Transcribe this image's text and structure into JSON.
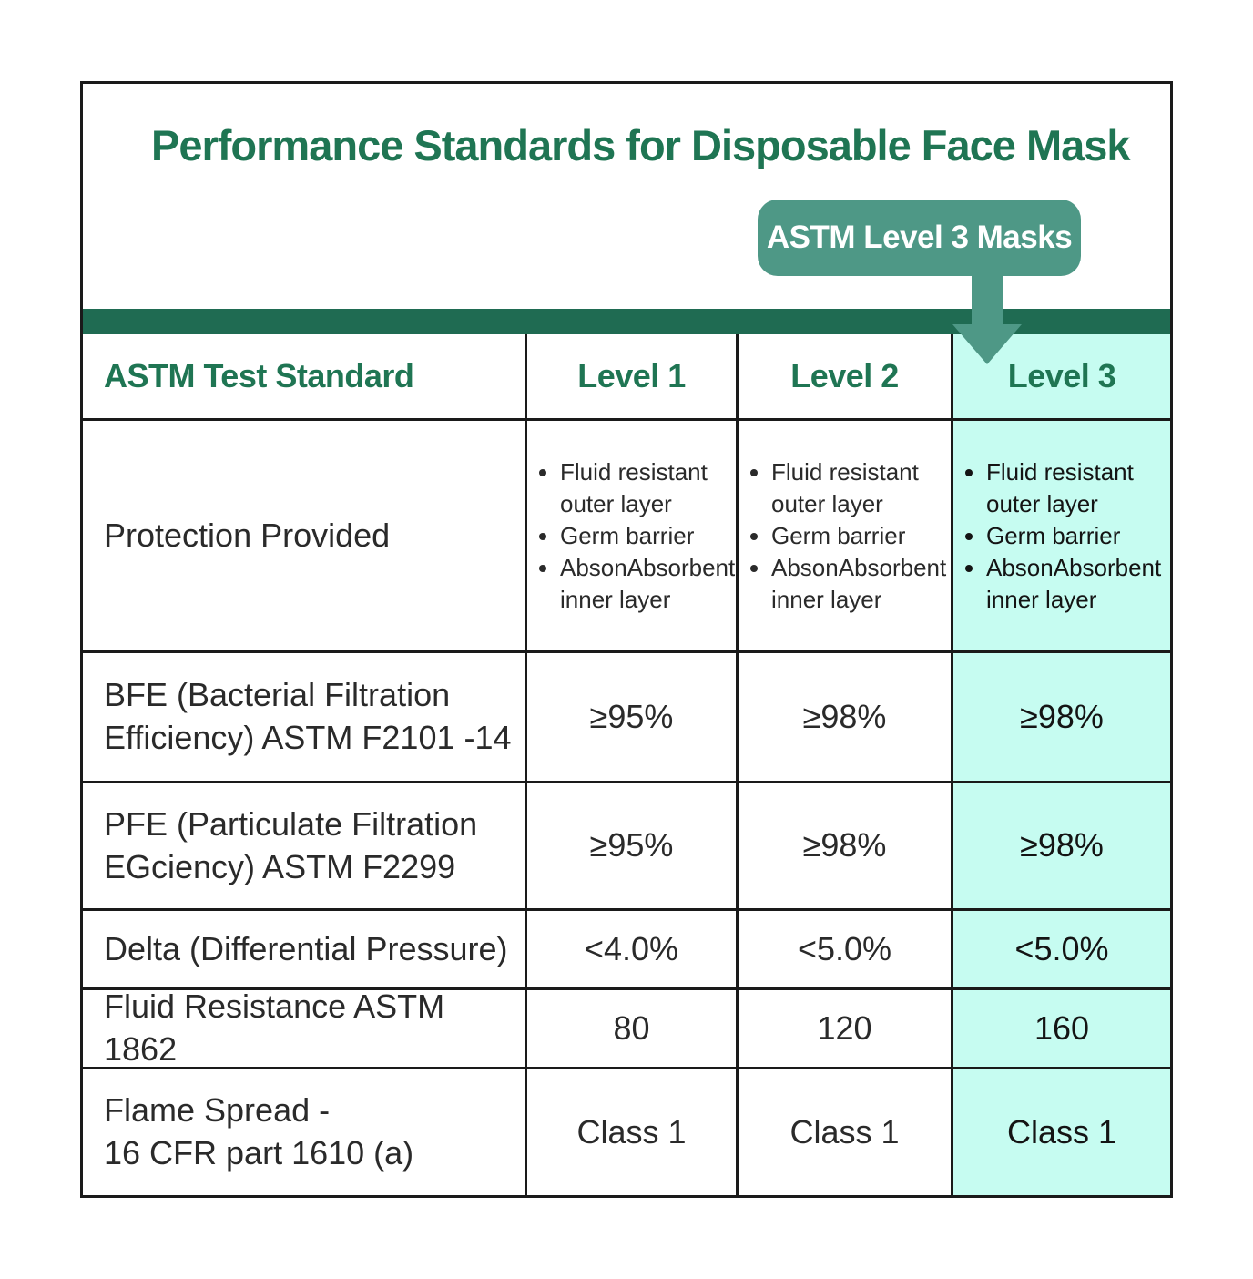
{
  "title": "Performance Standards for Disposable Face Mask",
  "callout": "ASTM Level 3 Masks",
  "colors": {
    "title_green": "#1f7553",
    "bar_green": "#1f6b52",
    "callout_green": "#4e9886",
    "highlight": "#c6fcf1"
  },
  "table": {
    "headers": [
      "ASTM Test Standard",
      "Level 1",
      "Level 2",
      "Level 3"
    ],
    "protection": {
      "label": "Protection Provided",
      "items": [
        "Fluid resistant outer layer",
        "Germ barrier",
        "AbsonAbsorbent inner layer"
      ]
    },
    "rows": [
      {
        "label_line1": "BFE (Bacterial Filtration",
        "label_line2": "Efficiency) ASTM F2101 -14",
        "values": [
          "≥95%",
          "≥98%",
          "≥98%"
        ]
      },
      {
        "label_line1": "PFE (Particulate Filtration",
        "label_line2": "EGciency) ASTM F2299",
        "values": [
          "≥95%",
          "≥98%",
          "≥98%"
        ]
      },
      {
        "label_line1": "Delta (Differential Pressure)",
        "label_line2": "",
        "values": [
          "<4.0%",
          "<5.0%",
          "<5.0%"
        ]
      },
      {
        "label_line1": "Fluid Resistance ASTM 1862",
        "label_line2": "",
        "values": [
          "80",
          "120",
          "160"
        ]
      },
      {
        "label_line1": "Flame Spread -",
        "label_line2": "16 CFR part 1610 (a)",
        "values": [
          "Class 1",
          "Class 1",
          "Class 1"
        ]
      }
    ]
  }
}
